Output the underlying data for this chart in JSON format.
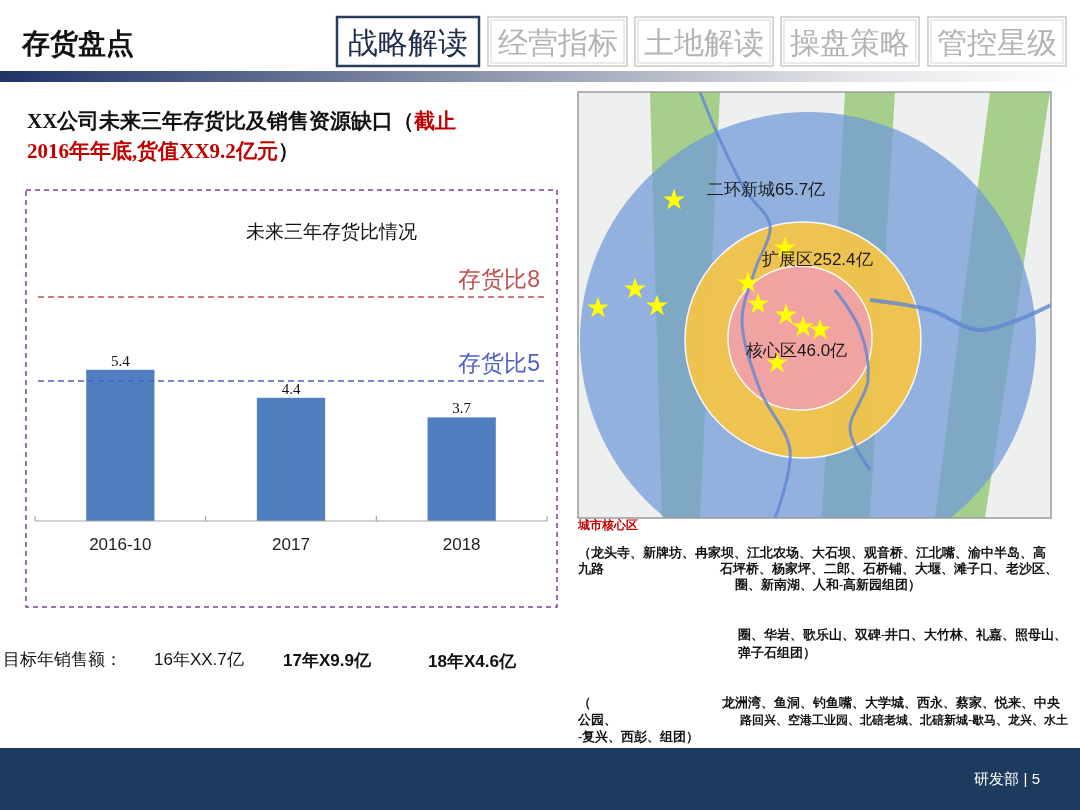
{
  "chart_data": {
    "type": "bar",
    "title": "未来三年存货比情况",
    "categories": [
      "2016-10",
      "2017",
      "2018"
    ],
    "values": [
      5.4,
      4.4,
      3.7
    ],
    "color": "#4f7fbe",
    "tick_labels": "x",
    "data_labels": true,
    "ref_lines": [
      {
        "axis": "y",
        "value": 8,
        "label": "存货比8",
        "color": "#c0504d",
        "line_style": "dashed"
      },
      {
        "axis": "y",
        "value": 5,
        "label": "存货比5",
        "color": "#4f5fc8",
        "line_style": "dashed"
      }
    ],
    "annotations": [
      "存货盘点",
      "战略解读",
      "经营指标",
      "土地解读",
      "操盘策略",
      "管控星级",
      "XX公司未来三年存货比及销售资源缺口（",
      "截止",
      "2016年年底,货值XX9.2亿元",
      "）",
      "目标年销售额：",
      "16年XX.7亿",
      "17年X9.9亿",
      "18年X4.6亿",
      "二环新城65.7亿",
      "扩展区252.4亿",
      "核心区46.0亿",
      "城市核心区",
      "（龙头寺、新牌坊、冉家坝、江北农场、大石坝、观音桥、江北嘴、渝中半岛、高",
      "九路",
      "石坪桥、杨家坪、二郎、石桥铺、大堰、滩子口、老沙区、",
      "圈、新南湖、人和-高新园组团）",
      "圈、华岩、歌乐山、双碑-井口、大竹林、礼嘉、照母山、",
      "弹子石组团）",
      "（",
      "龙洲湾、鱼洞、钓鱼嘴、大学城、西永、蔡家、悦来、中央",
      "公园、",
      "路回兴、空港工业园、北碚老城、北碚新城-歇马、龙兴、水土",
      "-复兴、西彭、组团）",
      "研发部 | 5"
    ]
  }
}
